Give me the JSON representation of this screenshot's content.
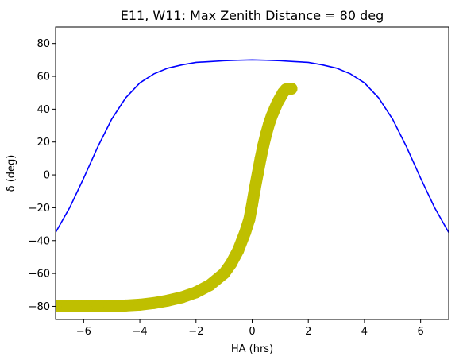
{
  "chart_data": {
    "type": "line",
    "title": "E11, W11: Max Zenith Distance = 80 deg",
    "xlabel": "HA (hrs)",
    "ylabel": "δ (deg)",
    "xlim": [
      -7,
      7
    ],
    "ylim": [
      -88,
      90
    ],
    "xticks": [
      -6,
      -4,
      -2,
      0,
      2,
      4,
      6
    ],
    "xtick_labels": [
      "−6",
      "−4",
      "−2",
      "0",
      "2",
      "4",
      "6"
    ],
    "yticks": [
      -80,
      -60,
      -40,
      -20,
      0,
      20,
      40,
      60,
      80
    ],
    "ytick_labels": [
      "−80",
      "−60",
      "−40",
      "−20",
      "0",
      "20",
      "40",
      "60",
      "80"
    ],
    "grid": false,
    "legend": "none",
    "series": [
      {
        "kind": "line",
        "color": "#0000ff",
        "x": [
          -7,
          -6.5,
          -6,
          -5.5,
          -5,
          -4.5,
          -4,
          -3.5,
          -3,
          -2.5,
          -2,
          -1.5,
          -1,
          -0.5,
          0,
          0.5,
          1,
          1.5,
          2,
          2.5,
          3,
          3.5,
          4,
          4.5,
          5,
          5.5,
          6,
          6.5,
          7
        ],
        "y": [
          -35,
          -20,
          -2,
          17,
          34,
          47,
          56,
          61.5,
          65,
          67,
          68.5,
          69,
          69.5,
          69.8,
          70,
          69.8,
          69.5,
          69,
          68.5,
          67,
          65,
          61.5,
          56,
          47,
          34,
          17,
          -2,
          -20,
          -35
        ]
      },
      {
        "kind": "scatter",
        "color": "#bfbf00",
        "x": [
          -7,
          -6.5,
          -6,
          -5.5,
          -5,
          -4.5,
          -4,
          -3.5,
          -3,
          -2.5,
          -2,
          -1.5,
          -1,
          -0.75,
          -0.5,
          -0.25,
          -0.1,
          0,
          0.1,
          0.2,
          0.3,
          0.4,
          0.5,
          0.6,
          0.7,
          0.8,
          0.9,
          1.0,
          1.1,
          1.2,
          1.3,
          1.4
        ],
        "y": [
          -80,
          -80,
          -80,
          -80,
          -80,
          -79.5,
          -79,
          -78,
          -76.5,
          -74.5,
          -71.5,
          -67,
          -60,
          -54,
          -46,
          -35,
          -27,
          -18,
          -8,
          1,
          10,
          18,
          25,
          31,
          36,
          40,
          44,
          47,
          50,
          52,
          52.5,
          52.5
        ]
      }
    ]
  }
}
